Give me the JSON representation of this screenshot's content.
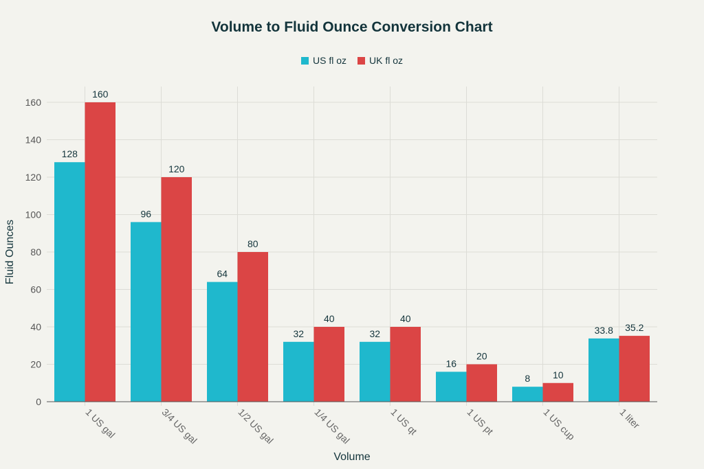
{
  "chart_data": {
    "type": "bar",
    "title": "Volume to Fluid Ounce Conversion Chart",
    "xlabel": "Volume",
    "ylabel": "Fluid Ounces",
    "categories": [
      "1 US gal",
      "3/4 US gal",
      "1/2 US gal",
      "1/4 US gal",
      "1 US qt",
      "1 US pt",
      "1 US cup",
      "1 liter"
    ],
    "series": [
      {
        "name": "US fl oz",
        "color": "#1FB8CD",
        "values": [
          128,
          96,
          64,
          32,
          32,
          16,
          8,
          33.8
        ]
      },
      {
        "name": "UK fl oz",
        "color": "#DB4545",
        "values": [
          160,
          120,
          80,
          40,
          40,
          20,
          10,
          35.2
        ]
      }
    ],
    "ylim": [
      0,
      168
    ],
    "yticks": [
      0,
      20,
      40,
      60,
      80,
      100,
      120,
      140,
      160
    ],
    "grid": true,
    "legend": "top-center",
    "data_labels": true
  }
}
